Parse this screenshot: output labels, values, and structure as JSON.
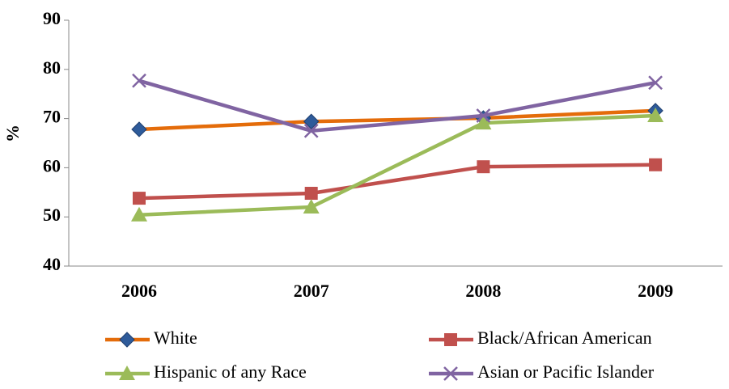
{
  "chart_data": {
    "type": "line",
    "y_label": "%",
    "categories": [
      "2006",
      "2007",
      "2008",
      "2009"
    ],
    "series": [
      {
        "name": "White",
        "color": "#e46c0a",
        "marker": "diamond",
        "marker_color": "#2e5b9a",
        "values": [
          67.8,
          69.4,
          70.1,
          71.6
        ]
      },
      {
        "name": "Black/African American",
        "color": "#c0504d",
        "marker": "square",
        "marker_color": "#c0504d",
        "values": [
          53.8,
          54.8,
          60.2,
          60.6
        ]
      },
      {
        "name": "Hispanic of any Race",
        "color": "#9bbb59",
        "marker": "triangle",
        "marker_color": "#9bbb59",
        "values": [
          50.4,
          52.0,
          69.1,
          70.6
        ]
      },
      {
        "name": "Asian or Pacific Islander",
        "color": "#8064a2",
        "marker": "x",
        "marker_color": "#8064a2",
        "values": [
          77.7,
          67.5,
          70.6,
          77.3
        ]
      }
    ],
    "ylim": [
      40,
      90
    ],
    "yticks": [
      40,
      50,
      60,
      70,
      80,
      90
    ],
    "grid": false
  }
}
